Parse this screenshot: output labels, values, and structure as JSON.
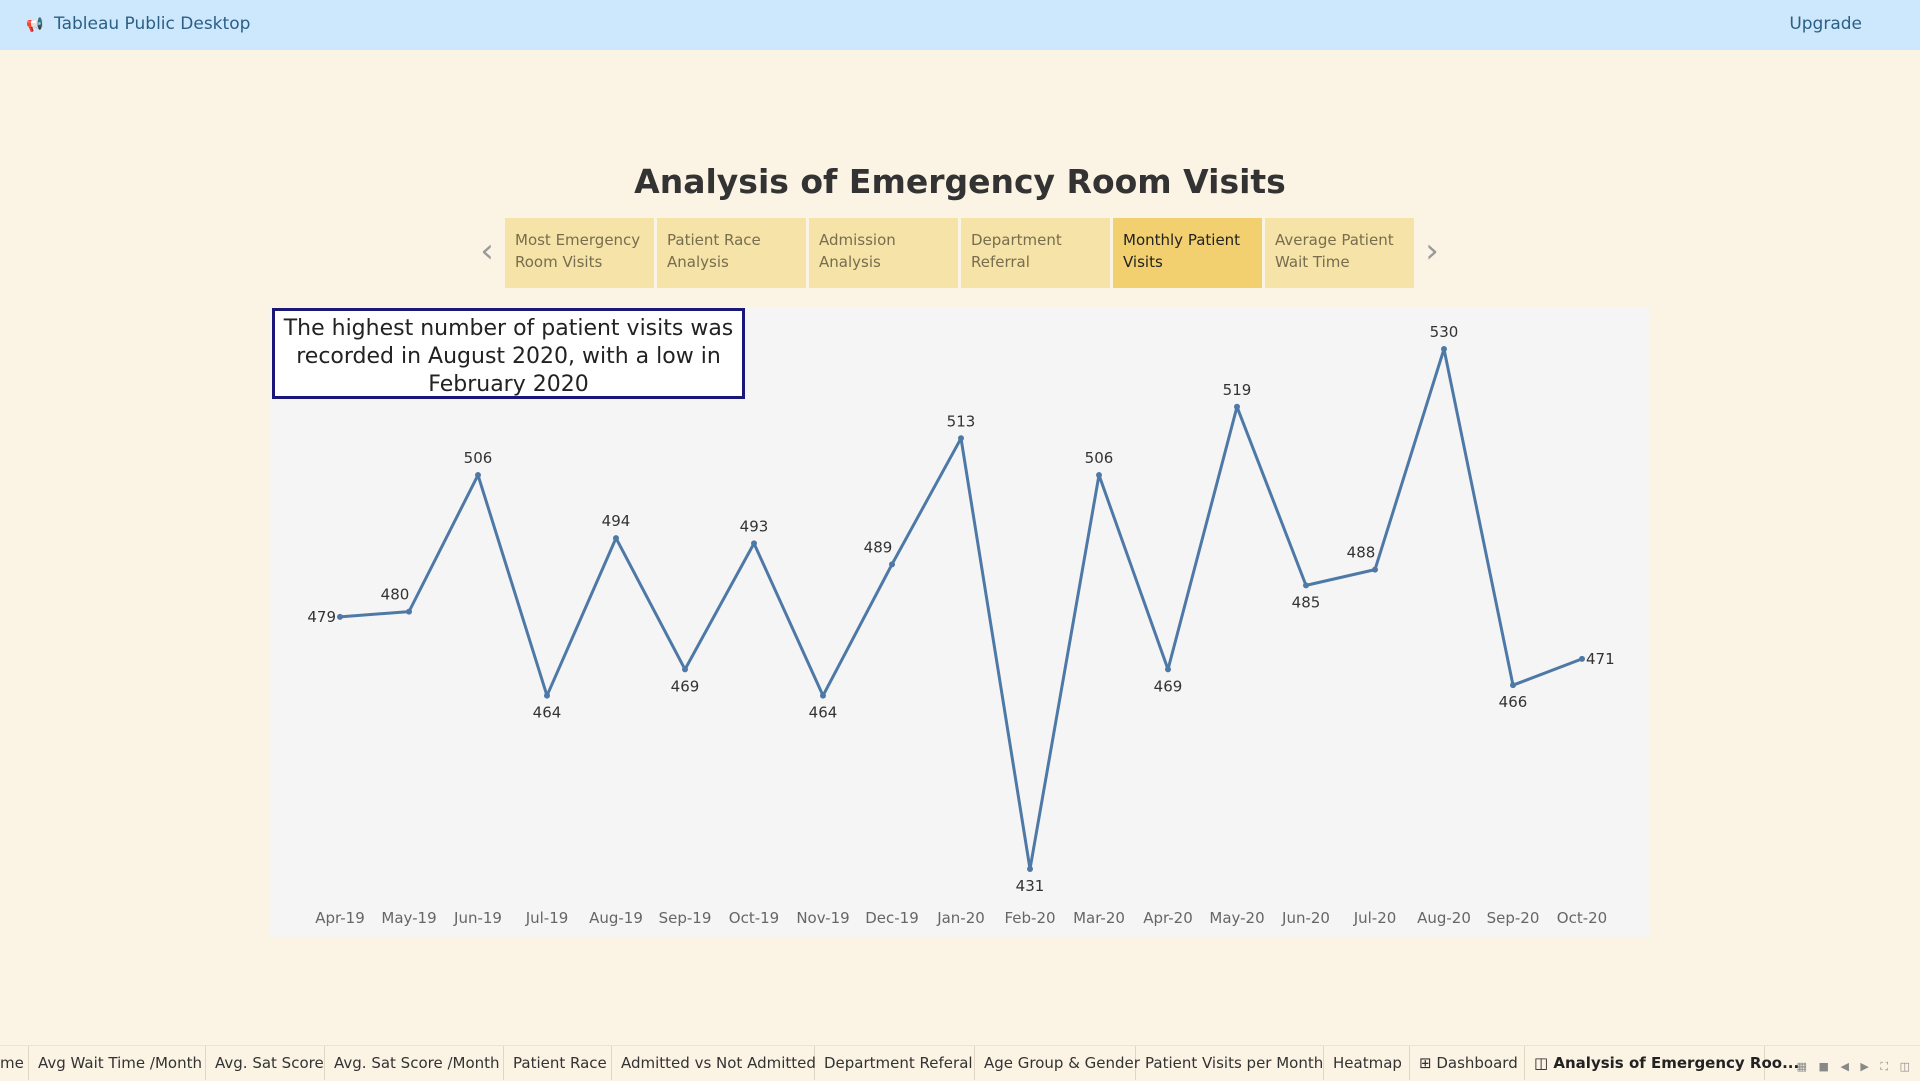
{
  "app": {
    "title": "Tableau Public Desktop",
    "upgrade_label": "Upgrade"
  },
  "story": {
    "title": "Analysis of Emergency Room Visits",
    "points": [
      {
        "label": "Most Emergency Room Visits",
        "active": false
      },
      {
        "label": "Patient Race Analysis",
        "active": false
      },
      {
        "label": "Admission Analysis",
        "active": false
      },
      {
        "label": "Department Referral",
        "active": false
      },
      {
        "label": "Monthly Patient Visits",
        "active": true
      },
      {
        "label": "Average Patient Wait Time",
        "active": false
      }
    ]
  },
  "annotation": "The highest number of patient visits was recorded in August 2020, with a low in February 2020",
  "chart_data": {
    "type": "line",
    "categories": [
      "Apr-19",
      "May-19",
      "Jun-19",
      "Jul-19",
      "Aug-19",
      "Sep-19",
      "Oct-19",
      "Nov-19",
      "Dec-19",
      "Jan-20",
      "Feb-20",
      "Mar-20",
      "Apr-20",
      "May-20",
      "Jun-20",
      "Jul-20",
      "Aug-20",
      "Sep-20",
      "Oct-20"
    ],
    "values": [
      479,
      480,
      506,
      464,
      494,
      469,
      493,
      464,
      489,
      513,
      431,
      506,
      469,
      519,
      485,
      488,
      530,
      466,
      471
    ],
    "title": "",
    "xlabel": "",
    "ylabel": "",
    "color": "#4e79a7",
    "grid": false,
    "data_labels": true
  },
  "sheet_tabs": [
    {
      "label": "me",
      "active": false
    },
    {
      "label": "Avg Wait Time /Month",
      "active": false
    },
    {
      "label": "Avg. Sat Score",
      "active": false
    },
    {
      "label": "Avg. Sat Score /Month",
      "active": false
    },
    {
      "label": "Patient Race",
      "active": false
    },
    {
      "label": "Admitted vs Not Admitted",
      "active": false
    },
    {
      "label": "Department Referal",
      "active": false
    },
    {
      "label": "Age Group & Gender",
      "active": false
    },
    {
      "label": "Patient Visits per Month",
      "active": false
    },
    {
      "label": "Heatmap",
      "active": false
    },
    {
      "label": "⊞ Dashboard",
      "active": false
    },
    {
      "label": "◫ Analysis of Emergency Roo...",
      "active": true
    }
  ]
}
